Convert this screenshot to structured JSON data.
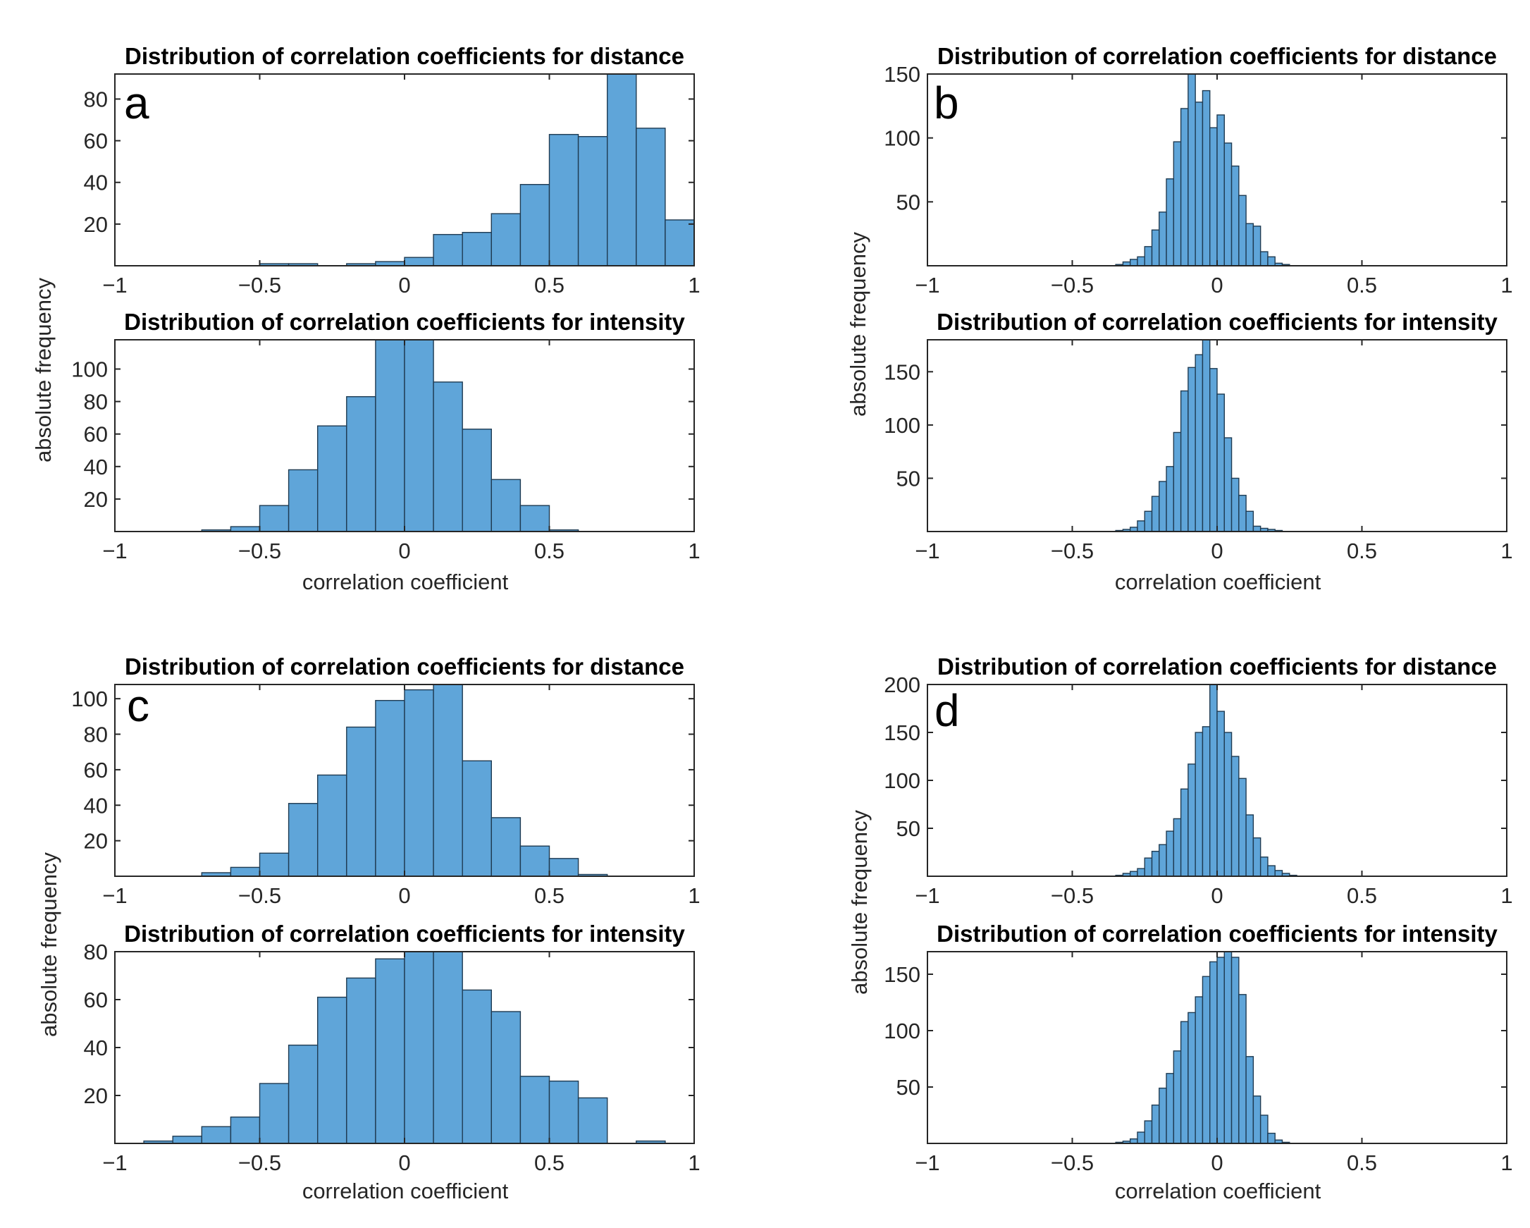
{
  "style": {
    "bar_fill": "#5fa5d9",
    "bar_stroke": "#1f3b52",
    "axis_color": "#262626"
  },
  "panels": [
    {
      "label": "a",
      "ylabel": "absolute frequency",
      "xlabel": "correlation coefficient"
    },
    {
      "label": "b",
      "ylabel": "absolute frequency",
      "xlabel": "correlation coefficient"
    },
    {
      "label": "c",
      "ylabel": "absolute frequency",
      "xlabel": "correlation coefficient"
    },
    {
      "label": "d",
      "ylabel": "absolute frequency",
      "xlabel": "correlation coefficient"
    }
  ],
  "chart_data": [
    {
      "type": "bar",
      "panel": "a",
      "title": "Distribution of correlation coefficients for distance",
      "xlim": [
        -1,
        1
      ],
      "ylim": [
        0,
        92
      ],
      "xticks": [
        -1,
        -0.5,
        0,
        0.5,
        1
      ],
      "xtick_labels": [
        "−1",
        "−0.5",
        "0",
        "0.5",
        "1"
      ],
      "yticks": [
        20,
        40,
        60,
        80
      ],
      "bin_edges_start": -0.5,
      "bin_width": 0.1,
      "values": [
        1,
        1,
        0,
        1,
        2,
        4,
        15,
        16,
        25,
        39,
        63,
        62,
        92,
        66,
        22
      ]
    },
    {
      "type": "bar",
      "panel": "a",
      "title": "Distribution of correlation coefficients for intensity",
      "xlim": [
        -1,
        1
      ],
      "ylim": [
        0,
        118
      ],
      "xticks": [
        -1,
        -0.5,
        0,
        0.5,
        1
      ],
      "xtick_labels": [
        "−1",
        "−0.5",
        "0",
        "0.5",
        "1"
      ],
      "yticks": [
        20,
        40,
        60,
        80,
        100
      ],
      "bin_edges_start": -0.7,
      "bin_width": 0.1,
      "values": [
        1,
        3,
        16,
        38,
        65,
        83,
        118,
        118,
        92,
        63,
        32,
        16,
        1
      ]
    },
    {
      "type": "bar",
      "panel": "b",
      "title": "Distribution of correlation coefficients for distance",
      "xlim": [
        -1,
        1
      ],
      "ylim": [
        0,
        150
      ],
      "xticks": [
        -1,
        -0.5,
        0,
        0.5,
        1
      ],
      "xtick_labels": [
        "−1",
        "−0.5",
        "0",
        "0.5",
        "1"
      ],
      "yticks": [
        50,
        100,
        150
      ],
      "bin_edges_start": -0.35,
      "bin_width": 0.025,
      "values": [
        1,
        3,
        5,
        7,
        15,
        28,
        42,
        68,
        97,
        123,
        150,
        128,
        137,
        108,
        118,
        96,
        78,
        55,
        33,
        31,
        11,
        7,
        2,
        1
      ]
    },
    {
      "type": "bar",
      "panel": "b",
      "title": "Distribution of correlation coefficients for intensity",
      "xlim": [
        -1,
        1
      ],
      "ylim": [
        0,
        180
      ],
      "xticks": [
        -1,
        -0.5,
        0,
        0.5,
        1
      ],
      "xtick_labels": [
        "−1",
        "−0.5",
        "0",
        "0.5",
        "1"
      ],
      "yticks": [
        50,
        100,
        150
      ],
      "bin_edges_start": -0.35,
      "bin_width": 0.025,
      "values": [
        1,
        2,
        4,
        10,
        19,
        33,
        47,
        61,
        93,
        132,
        154,
        166,
        180,
        153,
        129,
        88,
        50,
        34,
        19,
        5,
        3,
        2,
        1
      ]
    },
    {
      "type": "bar",
      "panel": "c",
      "title": "Distribution of correlation coefficients for distance",
      "xlim": [
        -1,
        1
      ],
      "ylim": [
        0,
        108
      ],
      "xticks": [
        -1,
        -0.5,
        0,
        0.5,
        1
      ],
      "xtick_labels": [
        "−1",
        "−0.5",
        "0",
        "0.5",
        "1"
      ],
      "yticks": [
        20,
        40,
        60,
        80,
        100
      ],
      "bin_edges_start": -0.7,
      "bin_width": 0.1,
      "values": [
        2,
        5,
        13,
        41,
        57,
        84,
        99,
        105,
        108,
        65,
        33,
        17,
        10,
        1
      ]
    },
    {
      "type": "bar",
      "panel": "c",
      "title": "Distribution of correlation coefficients for intensity",
      "xlim": [
        -1,
        1
      ],
      "ylim": [
        0,
        80
      ],
      "xticks": [
        -1,
        -0.5,
        0,
        0.5,
        1
      ],
      "xtick_labels": [
        "−1",
        "−0.5",
        "0",
        "0.5",
        "1"
      ],
      "yticks": [
        20,
        40,
        60,
        80
      ],
      "bin_edges_start": -0.9,
      "bin_width": 0.1,
      "values": [
        1,
        3,
        7,
        11,
        25,
        41,
        61,
        69,
        77,
        80,
        80,
        64,
        55,
        28,
        26,
        19,
        0,
        1
      ]
    },
    {
      "type": "bar",
      "panel": "d",
      "title": "Distribution of correlation coefficients for distance",
      "xlim": [
        -1,
        1
      ],
      "ylim": [
        0,
        200
      ],
      "xticks": [
        -1,
        -0.5,
        0,
        0.5,
        1
      ],
      "xtick_labels": [
        "−1",
        "−0.5",
        "0",
        "0.5",
        "1"
      ],
      "yticks": [
        50,
        100,
        150,
        200
      ],
      "bin_edges_start": -0.35,
      "bin_width": 0.025,
      "values": [
        1,
        3,
        5,
        8,
        19,
        26,
        33,
        47,
        60,
        91,
        117,
        150,
        156,
        200,
        172,
        150,
        125,
        102,
        64,
        40,
        20,
        11,
        6,
        3,
        1
      ]
    },
    {
      "type": "bar",
      "panel": "d",
      "title": "Distribution of correlation coefficients for intensity",
      "xlim": [
        -1,
        1
      ],
      "ylim": [
        0,
        170
      ],
      "xticks": [
        -1,
        -0.5,
        0,
        0.5,
        1
      ],
      "xtick_labels": [
        "−1",
        "−0.5",
        "0",
        "0.5",
        "1"
      ],
      "yticks": [
        50,
        100,
        150
      ],
      "bin_edges_start": -0.35,
      "bin_width": 0.025,
      "values": [
        1,
        2,
        4,
        10,
        20,
        34,
        49,
        62,
        82,
        108,
        116,
        130,
        148,
        161,
        165,
        170,
        165,
        132,
        77,
        42,
        25,
        9,
        3,
        1
      ]
    }
  ]
}
